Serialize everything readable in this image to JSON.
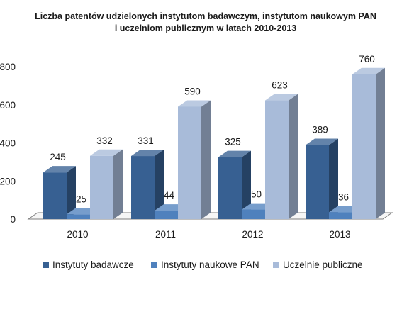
{
  "chart_data": {
    "type": "bar",
    "title_lines": [
      "Liczba patentów udzielonych instytutom badawczym, instytutom naukowym PAN",
      "i uczelniom publicznym w latach 2010-2013"
    ],
    "categories": [
      "2010",
      "2011",
      "2012",
      "2013"
    ],
    "series": [
      {
        "name": "Instytuty badawcze",
        "values": [
          245,
          331,
          325,
          389
        ],
        "color": "#376092"
      },
      {
        "name": "Instytuty naukowe PAN",
        "values": [
          25,
          44,
          50,
          36
        ],
        "color": "#4f81bd"
      },
      {
        "name": "Uczelnie publiczne",
        "values": [
          332,
          590,
          623,
          760
        ],
        "color": "#a8bbd9"
      }
    ],
    "y_ticks": [
      "0",
      "200",
      "400",
      "600",
      "800"
    ],
    "ylim": [
      0,
      800
    ],
    "grid": false,
    "legend_position": "bottom",
    "style": "3d-column"
  }
}
